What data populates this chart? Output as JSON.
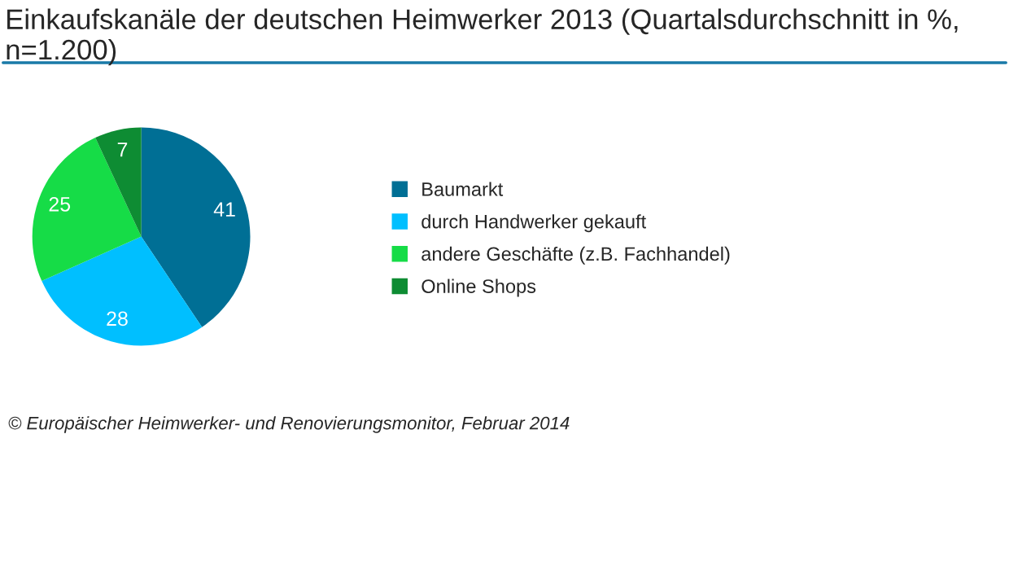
{
  "chart_data": {
    "type": "pie",
    "title": "Einkaufskanäle der deutschen Heimwerker 2013 (Quartalsdurchschnitt in %, n=1.200)",
    "categories": [
      "Baumarkt",
      "durch Handwerker gekauft",
      "andere Geschäfte (z.B. Fachhandel)",
      "Online Shops"
    ],
    "values": [
      41,
      28,
      25,
      7
    ],
    "colors": [
      "#006f95",
      "#00bfff",
      "#16dc47",
      "#0e8c33"
    ],
    "data_labels": true,
    "legend": "right",
    "annotations": [
      "© Europäischer Heimwerker- und Renovierungsmonitor, Februar 2014"
    ]
  }
}
